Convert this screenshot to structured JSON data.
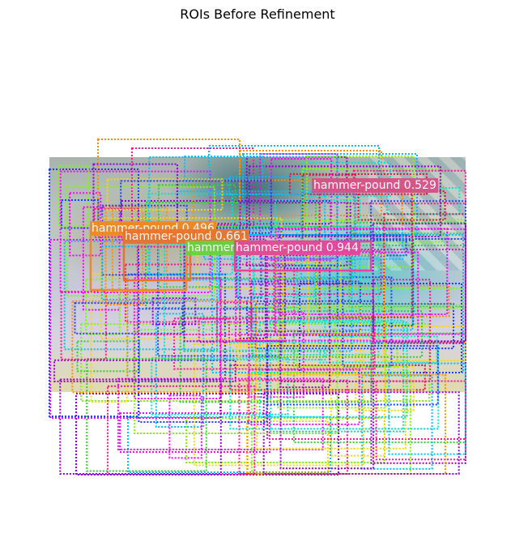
{
  "figure": {
    "title": "ROIs Before Refinement"
  },
  "detections": [
    {
      "label": "hammer-pound 0.944",
      "color": "#e8449a"
    },
    {
      "label": "hammer-pound 0.529",
      "color": "#d94f86"
    },
    {
      "label": "hammer-pound 0.661",
      "color": "#e8742c"
    },
    {
      "label": "hammer-pound 0.496",
      "color": "#f08a20"
    },
    {
      "label": "hammer-pound 0.",
      "color": "#66d43a"
    }
  ],
  "palette": [
    "#ff1493",
    "#00bfff",
    "#7cfc00",
    "#ffd700",
    "#9400d3",
    "#1e3cff",
    "#ff8c00",
    "#00e5d0",
    "#ff00ff",
    "#32cd32",
    "#dc143c"
  ]
}
